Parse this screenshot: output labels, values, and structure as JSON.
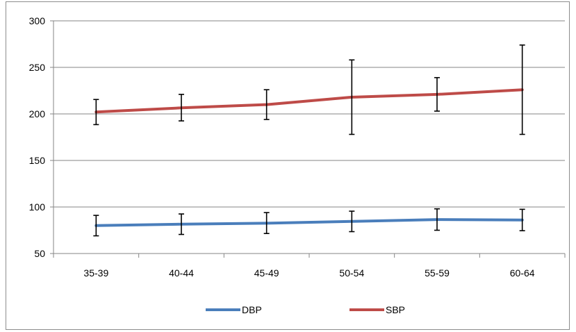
{
  "chart_data": {
    "type": "line",
    "categories": [
      "35-39",
      "40-44",
      "45-49",
      "50-54",
      "55-59",
      "60-64"
    ],
    "ylim": [
      50,
      300
    ],
    "yticks": [
      50,
      100,
      150,
      200,
      250,
      300
    ],
    "grid": true,
    "legend_position": "bottom",
    "series": [
      {
        "name": "DBP",
        "color": "#4a7ebb",
        "values": [
          80,
          81.5,
          82.5,
          84.5,
          86.5,
          86
        ],
        "error_low": [
          69,
          70.5,
          71.5,
          73.5,
          75,
          74.5
        ],
        "error_high": [
          91,
          92.5,
          94,
          95.5,
          98,
          97.5
        ]
      },
      {
        "name": "SBP",
        "color": "#be4b48",
        "values": [
          202,
          206.5,
          210,
          218,
          221,
          226
        ],
        "error_low": [
          188.5,
          192.5,
          194,
          178,
          203,
          178
        ],
        "error_high": [
          215.5,
          221,
          226,
          258,
          239,
          274
        ]
      }
    ]
  }
}
